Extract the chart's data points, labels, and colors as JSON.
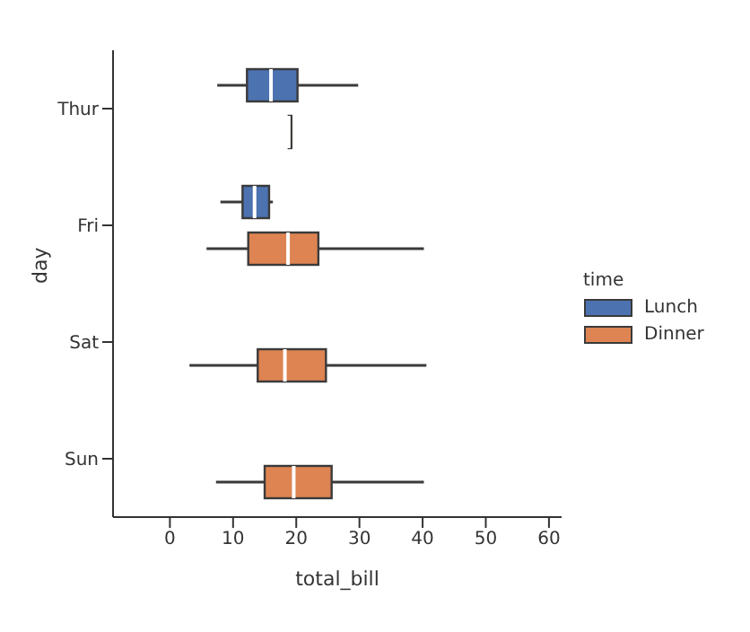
{
  "chart_data": {
    "type": "box",
    "orientation": "horizontal",
    "categories": [
      "Thur",
      "Fri",
      "Sat",
      "Sun"
    ],
    "xlabel": "total_bill",
    "ylabel": "day",
    "legend_title": "time",
    "legend": "right",
    "xlim": [
      -9,
      62
    ],
    "xticks": [
      0,
      10,
      20,
      30,
      40,
      50,
      60
    ],
    "series": [
      {
        "name": "Lunch",
        "color": "#4c72b0",
        "boxes": [
          {
            "low": 7.5,
            "q1": 12.2,
            "median": 16,
            "q3": 20.2,
            "high": 29.8
          },
          {
            "low": 8,
            "q1": 11.5,
            "median": 13.4,
            "q3": 15.7,
            "high": 16.3
          },
          null,
          null
        ]
      },
      {
        "name": "Dinner",
        "color": "#dd8452",
        "boxes": [
          {
            "low": 18.8,
            "q1": 18.8,
            "median": 18.8,
            "q3": 18.8,
            "high": 18.8
          },
          {
            "low": 5.8,
            "q1": 12.4,
            "median": 18.7,
            "q3": 23.5,
            "high": 40.2
          },
          {
            "low": 3.1,
            "q1": 13.9,
            "median": 18.2,
            "q3": 24.7,
            "high": 40.6
          },
          {
            "low": 7.3,
            "q1": 15,
            "median": 19.6,
            "q3": 25.6,
            "high": 40.2
          }
        ]
      }
    ]
  }
}
